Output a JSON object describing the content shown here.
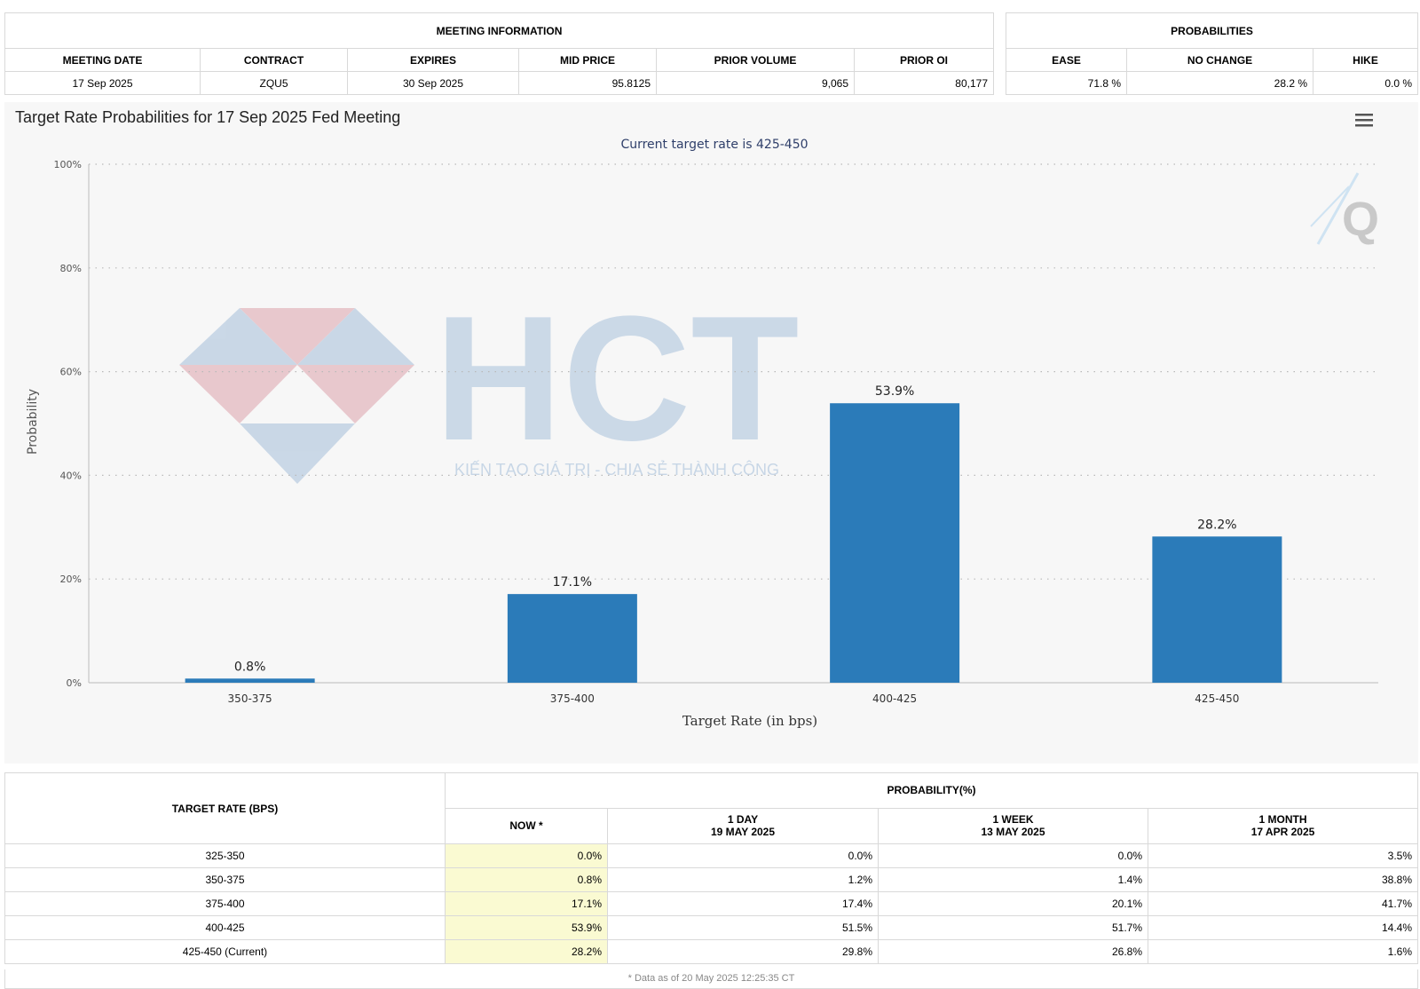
{
  "meeting_info": {
    "title": "MEETING INFORMATION",
    "headers": [
      "MEETING DATE",
      "CONTRACT",
      "EXPIRES",
      "MID PRICE",
      "PRIOR VOLUME",
      "PRIOR OI"
    ],
    "row": {
      "meeting_date": "17 Sep 2025",
      "contract": "ZQU5",
      "expires": "30 Sep 2025",
      "mid_price": "95.8125",
      "prior_volume": "9,065",
      "prior_oi": "80,177"
    }
  },
  "probabilities": {
    "title": "PROBABILITIES",
    "headers": [
      "EASE",
      "NO CHANGE",
      "HIKE"
    ],
    "row": {
      "ease": "71.8 %",
      "no_change": "28.2 %",
      "hike": "0.0 %"
    }
  },
  "chart": {
    "menu_icon": "hamburger-menu-icon",
    "logo_icon": "q-logo-icon",
    "watermark": {
      "text": "HCT",
      "slogan": "KIẾN TẠO GIÁ TRỊ - CHIA SẺ THÀNH CÔNG",
      "colors": {
        "blue": "#c7d6e6",
        "pink": "#e8c6cb"
      }
    }
  },
  "chart_data": {
    "type": "bar",
    "title": "Target Rate Probabilities for 17 Sep 2025 Fed Meeting",
    "subtitle": "Current target rate is 425-450",
    "xlabel": "Target Rate (in bps)",
    "ylabel": "Probability",
    "categories": [
      "350-375",
      "375-400",
      "400-425",
      "425-450"
    ],
    "values": [
      0.8,
      17.1,
      53.9,
      28.2
    ],
    "data_labels": [
      "0.8%",
      "17.1%",
      "53.9%",
      "28.2%"
    ],
    "yticks": [
      "0%",
      "20%",
      "40%",
      "60%",
      "80%",
      "100%"
    ],
    "ylim": [
      0,
      100
    ],
    "grid": true,
    "bar_color": "#2b7bb9"
  },
  "prob_table": {
    "target_header": "TARGET RATE (BPS)",
    "group_header": "PROBABILITY(%)",
    "columns": [
      {
        "line1": "NOW *",
        "line2": ""
      },
      {
        "line1": "1 DAY",
        "line2": "19 MAY 2025"
      },
      {
        "line1": "1 WEEK",
        "line2": "13 MAY 2025"
      },
      {
        "line1": "1 MONTH",
        "line2": "17 APR 2025"
      }
    ],
    "rows": [
      {
        "rate": "325-350",
        "values": [
          "0.0%",
          "0.0%",
          "0.0%",
          "3.5%"
        ]
      },
      {
        "rate": "350-375",
        "values": [
          "0.8%",
          "1.2%",
          "1.4%",
          "38.8%"
        ]
      },
      {
        "rate": "375-400",
        "values": [
          "17.1%",
          "17.4%",
          "20.1%",
          "41.7%"
        ]
      },
      {
        "rate": "400-425",
        "values": [
          "53.9%",
          "51.5%",
          "51.7%",
          "14.4%"
        ]
      },
      {
        "rate": "425-450 (Current)",
        "values": [
          "28.2%",
          "29.8%",
          "26.8%",
          "1.6%"
        ]
      }
    ],
    "footnote": "* Data as of 20 May 2025 12:25:35 CT"
  }
}
